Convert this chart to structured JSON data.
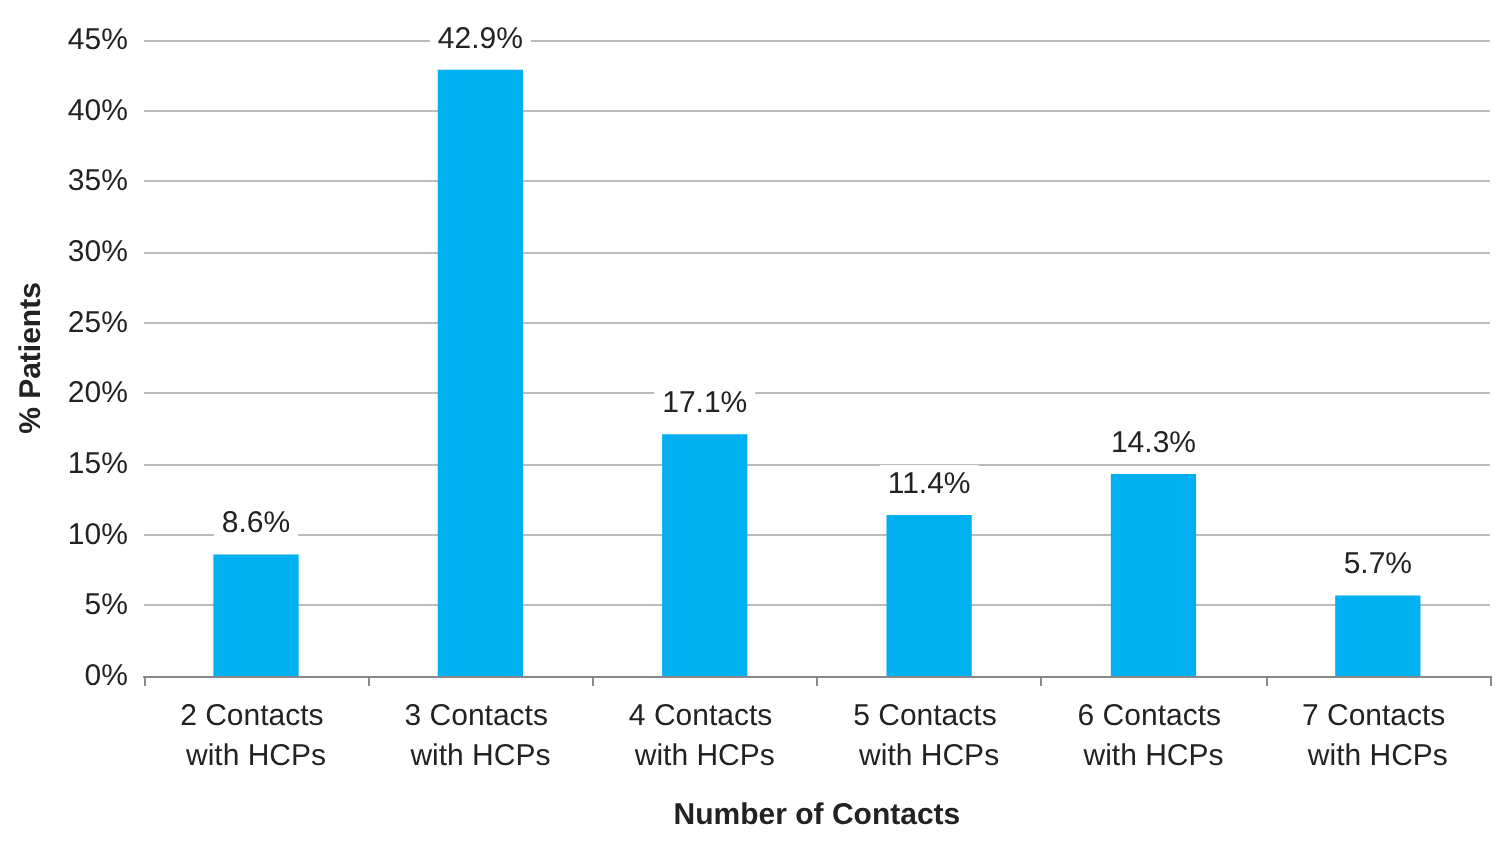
{
  "chart_data": {
    "type": "bar",
    "xlabel": "Number of Contacts",
    "ylabel": "% Patients",
    "categories": [
      "2 Contacts with HCPs",
      "3 Contacts with HCPs",
      "4 Contacts with HCPs",
      "5 Contacts with HCPs",
      "6 Contacts with HCPs",
      "7 Contacts with HCPs"
    ],
    "values": [
      8.6,
      42.9,
      17.1,
      11.4,
      14.3,
      5.7
    ],
    "value_labels": [
      "8.6%",
      "42.9%",
      "17.1%",
      "11.4%",
      "14.3%",
      "5.7%"
    ],
    "color": "#00b0f0",
    "ylim": [
      0,
      45
    ],
    "yticks": [
      {
        "value": 0,
        "label": "0%"
      },
      {
        "value": 5,
        "label": "5%"
      },
      {
        "value": 10,
        "label": "10%"
      },
      {
        "value": 15,
        "label": "15%"
      },
      {
        "value": 20,
        "label": "20%"
      },
      {
        "value": 25,
        "label": "25%"
      },
      {
        "value": 30,
        "label": "30%"
      },
      {
        "value": 35,
        "label": "35%"
      },
      {
        "value": 40,
        "label": "40%"
      },
      {
        "value": 45,
        "label": "45%"
      }
    ],
    "grid": "y"
  }
}
